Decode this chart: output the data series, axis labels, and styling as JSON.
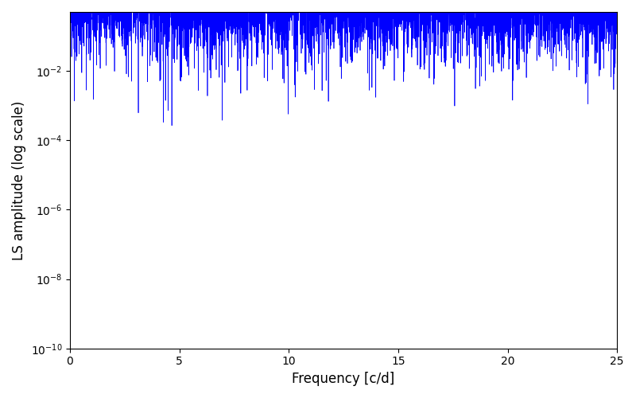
{
  "xlabel": "Frequency [c/d]",
  "ylabel": "LS amplitude (log scale)",
  "line_color": "#0000ff",
  "xlim": [
    0,
    25
  ],
  "ylim": [
    1e-10,
    0.5
  ],
  "figsize": [
    8.0,
    5.0
  ],
  "dpi": 100,
  "seed": 42,
  "n_freq": 7000,
  "freq_max": 25.0,
  "n_obs": 500,
  "t_span": 365.0,
  "signal_freqs": [
    1.0,
    0.5,
    2.0,
    3.0,
    7.0,
    9.5
  ],
  "signal_amps": [
    0.5,
    0.2,
    0.15,
    0.08,
    0.05,
    0.04
  ],
  "noise_level": 0.002
}
